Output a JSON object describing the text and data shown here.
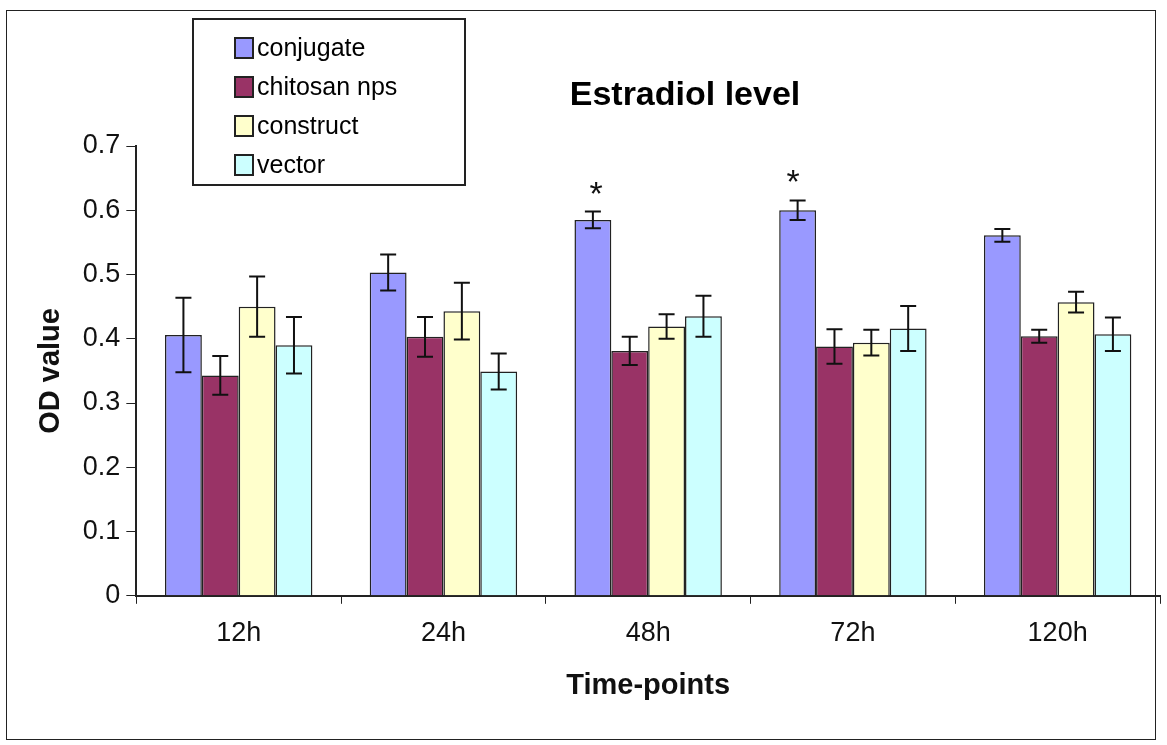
{
  "chart_data": {
    "type": "bar",
    "title": "Estradiol level",
    "xlabel": "Time-points",
    "ylabel": "OD value",
    "categories": [
      "12h",
      "24h",
      "48h",
      "72h",
      "120h"
    ],
    "series": [
      {
        "name": "conjugate",
        "color": "#9999ff",
        "values": [
          0.406,
          0.503,
          0.585,
          0.6,
          0.561
        ],
        "errors": [
          0.058,
          0.028,
          0.013,
          0.015,
          0.01
        ]
      },
      {
        "name": "chitosan nps",
        "color": "#993366",
        "values": [
          0.343,
          0.403,
          0.381,
          0.388,
          0.404
        ],
        "errors": [
          0.03,
          0.031,
          0.022,
          0.027,
          0.01
        ]
      },
      {
        "name": "construct",
        "color": "#ffffcc",
        "values": [
          0.45,
          0.443,
          0.419,
          0.394,
          0.457
        ],
        "errors": [
          0.047,
          0.044,
          0.019,
          0.02,
          0.016
        ]
      },
      {
        "name": "vector",
        "color": "#ccffff",
        "values": [
          0.39,
          0.349,
          0.435,
          0.416,
          0.407
        ],
        "errors": [
          0.044,
          0.028,
          0.032,
          0.035,
          0.026
        ]
      }
    ],
    "ylim": [
      0,
      0.7
    ],
    "yticks": [
      0,
      0.1,
      0.2,
      0.3,
      0.4,
      0.5,
      0.6,
      0.7
    ],
    "grid": false,
    "legend": "top left",
    "annotations": [
      "*",
      "*"
    ]
  }
}
